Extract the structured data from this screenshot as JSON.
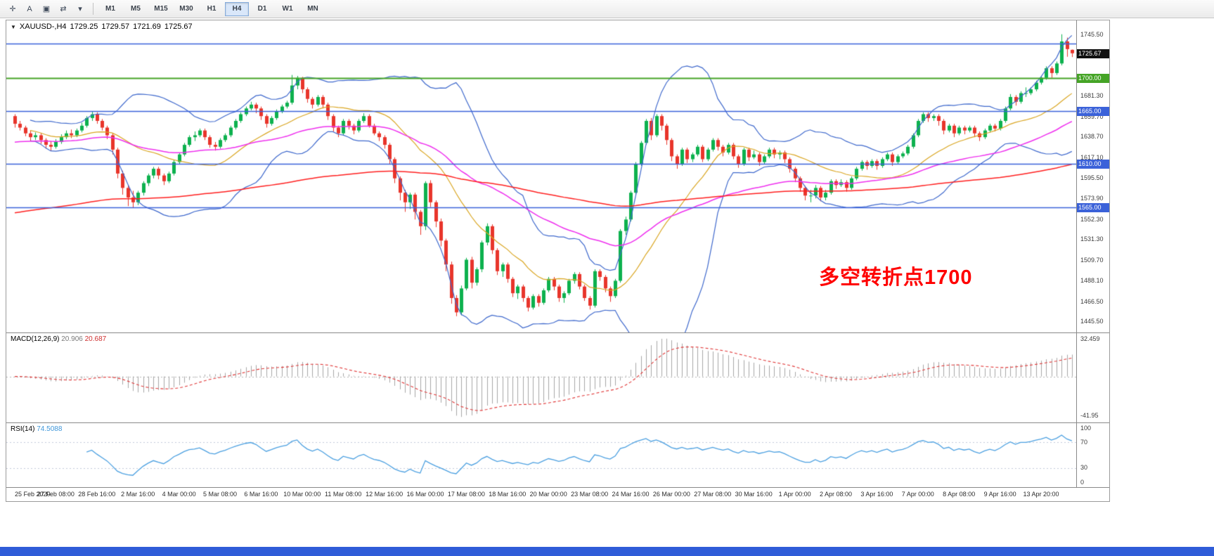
{
  "toolbar": {
    "icons": [
      {
        "id": "crosshair-icon",
        "glyph": "✛"
      },
      {
        "id": "text-tool-icon",
        "glyph": "A"
      },
      {
        "id": "objects-list-icon",
        "glyph": "▣"
      },
      {
        "id": "cycle-timeframes-icon",
        "glyph": "⇄"
      },
      {
        "id": "dropdown-caret-icon",
        "glyph": "▾"
      }
    ],
    "timeframes": [
      {
        "label": "M1",
        "active": false
      },
      {
        "label": "M5",
        "active": false
      },
      {
        "label": "M15",
        "active": false
      },
      {
        "label": "M30",
        "active": false
      },
      {
        "label": "H1",
        "active": false
      },
      {
        "label": "H4",
        "active": true
      },
      {
        "label": "D1",
        "active": false
      },
      {
        "label": "W1",
        "active": false
      },
      {
        "label": "MN",
        "active": false
      }
    ]
  },
  "chart": {
    "title": {
      "caret": "▼",
      "symbol": "XAUUSD-,H4",
      "open": "1729.25",
      "high": "1729.57",
      "low": "1721.69",
      "close": "1725.67"
    },
    "annotation": {
      "text": "多空转折点1700",
      "color": "#ff0000"
    },
    "price_axis": {
      "max": 1760,
      "min": 1434,
      "labels": [
        1745.5,
        1681.3,
        1659.7,
        1638.7,
        1617.1,
        1595.5,
        1573.9,
        1552.3,
        1531.3,
        1509.7,
        1488.1,
        1466.5,
        1445.5
      ],
      "tags": [
        {
          "value": "1725.67",
          "price": 1725.67,
          "bg": "#111111"
        },
        {
          "value": "1700.00",
          "price": 1700.0,
          "bg": "#45a426"
        },
        {
          "value": "1665.00",
          "price": 1665.0,
          "bg": "#3b62d9"
        },
        {
          "value": "1610.00",
          "price": 1610.0,
          "bg": "#3b62d9"
        },
        {
          "value": "1565.00",
          "price": 1565.0,
          "bg": "#3b62d9"
        }
      ]
    },
    "hlines": [
      {
        "price": 1736.0,
        "color": "#3b62d9",
        "width": 1.3
      },
      {
        "price": 1700.0,
        "color": "#45a426",
        "width": 2
      },
      {
        "price": 1665.0,
        "color": "#3b62d9",
        "width": 1.3
      },
      {
        "price": 1610.0,
        "color": "#3b62d9",
        "width": 1.3
      },
      {
        "price": 1565.0,
        "color": "#3b62d9",
        "width": 1.3
      }
    ],
    "indicators": {
      "bb_period": 20,
      "bb_dev": 2,
      "ma_magenta_period": 55,
      "ma_magenta_seed": 1632,
      "ma_red_period": 200,
      "ma_red_seed": 1558
    },
    "colors": {
      "candle_up": "#0db14e",
      "candle_down": "#e8352b",
      "bb": "#3e68cc",
      "bb_mid": "#d9a520",
      "ma_magenta": "#ee2fee",
      "ma_red": "#ff1f1f",
      "macd_hist": "#a6a6a6",
      "macd_signal": "#e03636",
      "rsi_line": "#4a9fe0"
    }
  },
  "macd": {
    "label": "MACD(12,26,9)",
    "value_main": "20.906",
    "value_signal": "20.687",
    "axis_max": "32.459",
    "axis_min": "-41.95",
    "fast": 12,
    "slow": 26,
    "signal": 9
  },
  "rsi": {
    "label": "RSI(14)",
    "value": "74.5088",
    "period": 14,
    "levels": [
      70,
      30
    ],
    "axis": [
      "100",
      "70",
      "30",
      "0"
    ]
  },
  "bottom_bar": {
    "color": "#2f5cd8"
  },
  "chart_data": {
    "type": "candlestick",
    "symbol": "XAUUSD",
    "timeframe": "H4",
    "title": "XAUUSD-,H4 1729.25 1729.57 1721.69 1725.67",
    "ylim": [
      1434,
      1760
    ],
    "label_every": 8,
    "time_labels": [
      "25 Feb 2020",
      "27 Feb 08:00",
      "28 Feb 16:00",
      "2 Mar 16:00",
      "4 Mar 00:00",
      "5 Mar 08:00",
      "6 Mar 16:00",
      "10 Mar 00:00",
      "11 Mar 08:00",
      "12 Mar 16:00",
      "16 Mar 00:00",
      "17 Mar 08:00",
      "18 Mar 16:00",
      "20 Mar 00:00",
      "23 Mar 08:00",
      "24 Mar 16:00",
      "26 Mar 00:00",
      "27 Mar 08:00",
      "30 Mar 16:00",
      "1 Apr 00:00",
      "2 Apr 08:00",
      "3 Apr 16:00",
      "7 Apr 00:00",
      "8 Apr 08:00",
      "9 Apr 16:00",
      "13 Apr 20:00"
    ],
    "ohlc": [
      [
        1660,
        1662,
        1648,
        1652
      ],
      [
        1652,
        1655,
        1645,
        1648
      ],
      [
        1648,
        1650,
        1639,
        1642
      ],
      [
        1642,
        1645,
        1634,
        1638
      ],
      [
        1638,
        1643,
        1635,
        1640
      ],
      [
        1640,
        1642,
        1631,
        1635
      ],
      [
        1635,
        1637,
        1626,
        1630
      ],
      [
        1630,
        1634,
        1624,
        1628
      ],
      [
        1628,
        1636,
        1626,
        1633
      ],
      [
        1633,
        1641,
        1631,
        1638
      ],
      [
        1638,
        1645,
        1636,
        1642
      ],
      [
        1642,
        1646,
        1637,
        1640
      ],
      [
        1640,
        1647,
        1638,
        1645
      ],
      [
        1645,
        1653,
        1643,
        1650
      ],
      [
        1650,
        1660,
        1648,
        1658
      ],
      [
        1658,
        1665,
        1655,
        1662
      ],
      [
        1662,
        1664,
        1652,
        1655
      ],
      [
        1655,
        1657,
        1645,
        1648
      ],
      [
        1648,
        1650,
        1636,
        1640
      ],
      [
        1640,
        1642,
        1620,
        1625
      ],
      [
        1625,
        1627,
        1595,
        1600
      ],
      [
        1600,
        1603,
        1578,
        1585
      ],
      [
        1585,
        1588,
        1566,
        1575
      ],
      [
        1575,
        1582,
        1564,
        1570
      ],
      [
        1570,
        1582,
        1567,
        1580
      ],
      [
        1580,
        1592,
        1577,
        1590
      ],
      [
        1590,
        1600,
        1587,
        1598
      ],
      [
        1598,
        1607,
        1595,
        1605
      ],
      [
        1605,
        1607,
        1594,
        1598
      ],
      [
        1598,
        1600,
        1588,
        1592
      ],
      [
        1592,
        1602,
        1590,
        1600
      ],
      [
        1600,
        1614,
        1598,
        1612
      ],
      [
        1612,
        1622,
        1610,
        1620
      ],
      [
        1620,
        1632,
        1618,
        1630
      ],
      [
        1630,
        1640,
        1628,
        1638
      ],
      [
        1638,
        1644,
        1634,
        1640
      ],
      [
        1640,
        1647,
        1638,
        1645
      ],
      [
        1645,
        1647,
        1635,
        1638
      ],
      [
        1638,
        1640,
        1627,
        1630
      ],
      [
        1630,
        1633,
        1624,
        1628
      ],
      [
        1628,
        1637,
        1626,
        1635
      ],
      [
        1635,
        1642,
        1633,
        1640
      ],
      [
        1640,
        1650,
        1638,
        1648
      ],
      [
        1648,
        1657,
        1646,
        1655
      ],
      [
        1655,
        1664,
        1653,
        1662
      ],
      [
        1662,
        1670,
        1660,
        1668
      ],
      [
        1668,
        1675,
        1666,
        1672
      ],
      [
        1672,
        1674,
        1663,
        1668
      ],
      [
        1668,
        1670,
        1656,
        1660
      ],
      [
        1660,
        1662,
        1648,
        1652
      ],
      [
        1652,
        1660,
        1650,
        1658
      ],
      [
        1658,
        1667,
        1656,
        1665
      ],
      [
        1665,
        1672,
        1663,
        1670
      ],
      [
        1670,
        1676,
        1668,
        1674
      ],
      [
        1674,
        1703,
        1672,
        1692
      ],
      [
        1692,
        1702,
        1688,
        1700
      ],
      [
        1700,
        1701,
        1684,
        1688
      ],
      [
        1688,
        1690,
        1674,
        1678
      ],
      [
        1678,
        1680,
        1668,
        1672
      ],
      [
        1672,
        1682,
        1670,
        1680
      ],
      [
        1680,
        1682,
        1668,
        1672
      ],
      [
        1672,
        1674,
        1656,
        1660
      ],
      [
        1660,
        1662,
        1644,
        1648
      ],
      [
        1648,
        1650,
        1638,
        1642
      ],
      [
        1642,
        1657,
        1640,
        1655
      ],
      [
        1655,
        1657,
        1646,
        1650
      ],
      [
        1650,
        1652,
        1641,
        1645
      ],
      [
        1645,
        1657,
        1643,
        1655
      ],
      [
        1655,
        1663,
        1653,
        1660
      ],
      [
        1660,
        1662,
        1648,
        1650
      ],
      [
        1650,
        1652,
        1640,
        1642
      ],
      [
        1642,
        1644,
        1634,
        1638
      ],
      [
        1638,
        1640,
        1626,
        1630
      ],
      [
        1630,
        1632,
        1610,
        1615
      ],
      [
        1615,
        1617,
        1590,
        1595
      ],
      [
        1595,
        1597,
        1572,
        1580
      ],
      [
        1580,
        1583,
        1560,
        1570
      ],
      [
        1570,
        1580,
        1563,
        1578
      ],
      [
        1578,
        1580,
        1552,
        1560
      ],
      [
        1560,
        1562,
        1536,
        1545
      ],
      [
        1545,
        1592,
        1541,
        1590
      ],
      [
        1590,
        1593,
        1565,
        1570
      ],
      [
        1570,
        1572,
        1544,
        1550
      ],
      [
        1550,
        1553,
        1524,
        1530
      ],
      [
        1530,
        1532,
        1498,
        1505
      ],
      [
        1505,
        1508,
        1464,
        1470
      ],
      [
        1470,
        1473,
        1451,
        1455
      ],
      [
        1455,
        1483,
        1452,
        1480
      ],
      [
        1480,
        1512,
        1478,
        1510
      ],
      [
        1510,
        1513,
        1480,
        1486
      ],
      [
        1486,
        1502,
        1483,
        1500
      ],
      [
        1500,
        1530,
        1497,
        1528
      ],
      [
        1528,
        1548,
        1525,
        1545
      ],
      [
        1545,
        1547,
        1516,
        1520
      ],
      [
        1520,
        1522,
        1494,
        1498
      ],
      [
        1498,
        1507,
        1492,
        1505
      ],
      [
        1505,
        1507,
        1486,
        1490
      ],
      [
        1490,
        1492,
        1471,
        1475
      ],
      [
        1475,
        1484,
        1469,
        1482
      ],
      [
        1482,
        1484,
        1466,
        1470
      ],
      [
        1470,
        1472,
        1456,
        1460
      ],
      [
        1460,
        1474,
        1458,
        1472
      ],
      [
        1472,
        1474,
        1461,
        1465
      ],
      [
        1465,
        1480,
        1463,
        1478
      ],
      [
        1478,
        1492,
        1476,
        1490
      ],
      [
        1490,
        1492,
        1478,
        1482
      ],
      [
        1482,
        1484,
        1466,
        1470
      ],
      [
        1470,
        1477,
        1465,
        1475
      ],
      [
        1475,
        1490,
        1473,
        1488
      ],
      [
        1488,
        1497,
        1485,
        1495
      ],
      [
        1495,
        1497,
        1479,
        1482
      ],
      [
        1482,
        1484,
        1467,
        1470
      ],
      [
        1470,
        1472,
        1458,
        1462
      ],
      [
        1462,
        1500,
        1460,
        1498
      ],
      [
        1498,
        1500,
        1488,
        1492
      ],
      [
        1492,
        1494,
        1476,
        1480
      ],
      [
        1480,
        1482,
        1466,
        1472
      ],
      [
        1472,
        1490,
        1470,
        1488
      ],
      [
        1488,
        1542,
        1486,
        1540
      ],
      [
        1540,
        1555,
        1536,
        1552
      ],
      [
        1552,
        1582,
        1550,
        1580
      ],
      [
        1580,
        1612,
        1578,
        1610
      ],
      [
        1610,
        1634,
        1608,
        1632
      ],
      [
        1632,
        1657,
        1630,
        1655
      ],
      [
        1655,
        1658,
        1635,
        1640
      ],
      [
        1640,
        1662,
        1638,
        1660
      ],
      [
        1660,
        1662,
        1645,
        1650
      ],
      [
        1650,
        1652,
        1630,
        1635
      ],
      [
        1635,
        1637,
        1613,
        1618
      ],
      [
        1618,
        1620,
        1605,
        1610
      ],
      [
        1610,
        1627,
        1608,
        1625
      ],
      [
        1625,
        1627,
        1611,
        1615
      ],
      [
        1615,
        1622,
        1612,
        1620
      ],
      [
        1620,
        1630,
        1618,
        1628
      ],
      [
        1628,
        1630,
        1612,
        1615
      ],
      [
        1615,
        1627,
        1613,
        1625
      ],
      [
        1625,
        1637,
        1623,
        1635
      ],
      [
        1635,
        1637,
        1624,
        1628
      ],
      [
        1628,
        1630,
        1618,
        1622
      ],
      [
        1622,
        1632,
        1620,
        1630
      ],
      [
        1630,
        1632,
        1615,
        1618
      ],
      [
        1618,
        1620,
        1606,
        1610
      ],
      [
        1610,
        1627,
        1608,
        1625
      ],
      [
        1625,
        1627,
        1613,
        1617
      ],
      [
        1617,
        1624,
        1615,
        1620
      ],
      [
        1620,
        1622,
        1608,
        1612
      ],
      [
        1612,
        1620,
        1610,
        1618
      ],
      [
        1618,
        1627,
        1616,
        1625
      ],
      [
        1625,
        1627,
        1616,
        1620
      ],
      [
        1620,
        1624,
        1615,
        1622
      ],
      [
        1622,
        1624,
        1611,
        1615
      ],
      [
        1615,
        1617,
        1601,
        1605
      ],
      [
        1605,
        1607,
        1591,
        1595
      ],
      [
        1595,
        1597,
        1581,
        1585
      ],
      [
        1585,
        1587,
        1572,
        1577
      ],
      [
        1577,
        1583,
        1570,
        1577
      ],
      [
        1577,
        1588,
        1574,
        1585
      ],
      [
        1585,
        1587,
        1571,
        1575
      ],
      [
        1575,
        1583,
        1572,
        1580
      ],
      [
        1580,
        1594,
        1578,
        1592
      ],
      [
        1592,
        1594,
        1584,
        1588
      ],
      [
        1588,
        1594,
        1586,
        1591
      ],
      [
        1591,
        1593,
        1581,
        1585
      ],
      [
        1585,
        1597,
        1583,
        1595
      ],
      [
        1595,
        1607,
        1593,
        1605
      ],
      [
        1605,
        1614,
        1603,
        1612
      ],
      [
        1612,
        1614,
        1604,
        1608
      ],
      [
        1608,
        1615,
        1606,
        1613
      ],
      [
        1613,
        1615,
        1604,
        1608
      ],
      [
        1608,
        1617,
        1606,
        1615
      ],
      [
        1615,
        1622,
        1613,
        1620
      ],
      [
        1620,
        1622,
        1608,
        1612
      ],
      [
        1612,
        1620,
        1610,
        1618
      ],
      [
        1618,
        1623,
        1616,
        1621
      ],
      [
        1621,
        1630,
        1619,
        1628
      ],
      [
        1628,
        1642,
        1626,
        1640
      ],
      [
        1640,
        1657,
        1638,
        1655
      ],
      [
        1655,
        1664,
        1653,
        1662
      ],
      [
        1662,
        1664,
        1654,
        1658
      ],
      [
        1658,
        1662,
        1655,
        1660
      ],
      [
        1660,
        1662,
        1650,
        1655
      ],
      [
        1655,
        1657,
        1641,
        1645
      ],
      [
        1645,
        1652,
        1643,
        1650
      ],
      [
        1650,
        1652,
        1638,
        1642
      ],
      [
        1642,
        1650,
        1640,
        1648
      ],
      [
        1648,
        1650,
        1641,
        1645
      ],
      [
        1645,
        1650,
        1643,
        1648
      ],
      [
        1648,
        1650,
        1638,
        1642
      ],
      [
        1642,
        1644,
        1634,
        1638
      ],
      [
        1638,
        1647,
        1636,
        1645
      ],
      [
        1645,
        1652,
        1643,
        1650
      ],
      [
        1650,
        1652,
        1644,
        1647
      ],
      [
        1647,
        1657,
        1645,
        1655
      ],
      [
        1655,
        1670,
        1653,
        1668
      ],
      [
        1668,
        1683,
        1666,
        1680
      ],
      [
        1680,
        1682,
        1671,
        1675
      ],
      [
        1675,
        1686,
        1673,
        1684
      ],
      [
        1684,
        1690,
        1680,
        1684
      ],
      [
        1684,
        1690,
        1682,
        1688
      ],
      [
        1688,
        1697,
        1686,
        1695
      ],
      [
        1695,
        1702,
        1693,
        1700
      ],
      [
        1700,
        1712,
        1698,
        1710
      ],
      [
        1710,
        1712,
        1700,
        1705
      ],
      [
        1705,
        1717,
        1703,
        1715
      ],
      [
        1715,
        1745.5,
        1713,
        1738
      ],
      [
        1738,
        1742,
        1722,
        1730
      ],
      [
        1729.25,
        1729.57,
        1721.69,
        1725.67
      ]
    ]
  }
}
